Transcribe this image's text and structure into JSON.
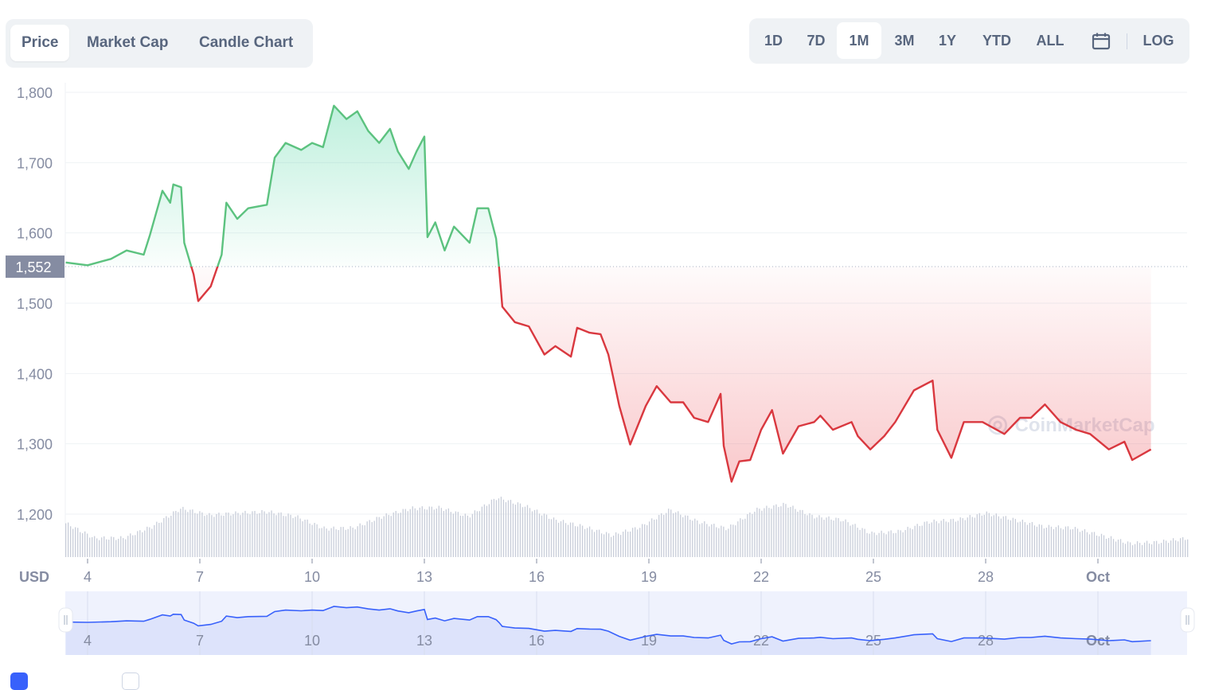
{
  "chart_tabs": [
    {
      "label": "Price",
      "active": true
    },
    {
      "label": "Market Cap",
      "active": false
    },
    {
      "label": "Candle Chart",
      "active": false
    }
  ],
  "time_ranges": [
    {
      "label": "1D",
      "active": false
    },
    {
      "label": "7D",
      "active": false
    },
    {
      "label": "1M",
      "active": true
    },
    {
      "label": "3M",
      "active": false
    },
    {
      "label": "1Y",
      "active": false
    },
    {
      "label": "YTD",
      "active": false
    },
    {
      "label": "ALL",
      "active": false
    }
  ],
  "calendar_icon": "calendar-icon",
  "log_label": "LOG",
  "currency_label": "USD",
  "watermark": "CoinMarketCap",
  "colors": {
    "up": "#16c784",
    "up_line": "#5cc27f",
    "down": "#ea3943",
    "down_line": "#d9383f",
    "navigator": "#3861fb"
  },
  "chart_data": {
    "type": "area",
    "y_ticks": [
      "1,200",
      "1,300",
      "1,400",
      "1,500",
      "1,600",
      "1,700",
      "1,800"
    ],
    "ylim": [
      1175,
      1825
    ],
    "x_ticks": [
      {
        "label": "4",
        "date": "09-04T00:00"
      },
      {
        "label": "7",
        "date": "09-07T00:00"
      },
      {
        "label": "10",
        "date": "09-10T00:00"
      },
      {
        "label": "13",
        "date": "09-13T00:00"
      },
      {
        "label": "16",
        "date": "09-16T00:00"
      },
      {
        "label": "19",
        "date": "09-19T00:00"
      },
      {
        "label": "22",
        "date": "09-22T00:00"
      },
      {
        "label": "25",
        "date": "09-25T00:00"
      },
      {
        "label": "28",
        "date": "09-28T00:00"
      },
      {
        "label": "Oct",
        "date": "10-01T00:00",
        "bold": true
      }
    ],
    "baseline": {
      "value": 1552,
      "label": "1,552"
    },
    "grid": true,
    "series": [
      {
        "points": [
          [
            "09-03T10:00",
            1558
          ],
          [
            "09-04T00:00",
            1554
          ],
          [
            "09-04T15:00",
            1563
          ],
          [
            "09-05T01:00",
            1575
          ],
          [
            "09-05T12:00",
            1569
          ],
          [
            "09-05T16:00",
            1597
          ],
          [
            "09-06T00:00",
            1660
          ],
          [
            "09-06T05:00",
            1643
          ],
          [
            "09-06T07:00",
            1669
          ],
          [
            "09-06T12:00",
            1665
          ],
          [
            "09-06T14:00",
            1586
          ],
          [
            "09-06T20:00",
            1541
          ],
          [
            "09-06T23:00",
            1503
          ],
          [
            "09-07T07:00",
            1524
          ],
          [
            "09-07T14:00",
            1569
          ],
          [
            "09-07T17:00",
            1643
          ],
          [
            "09-08T00:00",
            1620
          ],
          [
            "09-08T07:00",
            1635
          ],
          [
            "09-08T19:00",
            1640
          ],
          [
            "09-09T00:00",
            1707
          ],
          [
            "09-09T07:00",
            1728
          ],
          [
            "09-09T17:00",
            1718
          ],
          [
            "09-10T00:00",
            1728
          ],
          [
            "09-10T07:00",
            1722
          ],
          [
            "09-10T14:00",
            1781
          ],
          [
            "09-10T22:00",
            1762
          ],
          [
            "09-11T05:00",
            1773
          ],
          [
            "09-11T12:00",
            1745
          ],
          [
            "09-11T19:00",
            1728
          ],
          [
            "09-12T02:00",
            1748
          ],
          [
            "09-12T07:00",
            1716
          ],
          [
            "09-12T14:00",
            1691
          ],
          [
            "09-12T19:00",
            1716
          ],
          [
            "09-13T00:00",
            1737
          ],
          [
            "09-13T02:00",
            1594
          ],
          [
            "09-13T07:00",
            1615
          ],
          [
            "09-13T13:00",
            1575
          ],
          [
            "09-13T19:00",
            1609
          ],
          [
            "09-14T05:00",
            1586
          ],
          [
            "09-14T10:00",
            1635
          ],
          [
            "09-14T17:00",
            1635
          ],
          [
            "09-14T22:00",
            1592
          ],
          [
            "09-15T00:00",
            1549
          ],
          [
            "09-15T02:00",
            1495
          ],
          [
            "09-15T10:00",
            1473
          ],
          [
            "09-15T19:00",
            1467
          ],
          [
            "09-16T05:00",
            1427
          ],
          [
            "09-16T12:00",
            1439
          ],
          [
            "09-16T22:00",
            1424
          ],
          [
            "09-17T02:00",
            1465
          ],
          [
            "09-17T10:00",
            1458
          ],
          [
            "09-17T17:00",
            1456
          ],
          [
            "09-17T22:00",
            1427
          ],
          [
            "09-18T05:00",
            1354
          ],
          [
            "09-18T12:00",
            1299
          ],
          [
            "09-18T22:00",
            1354
          ],
          [
            "09-19T05:00",
            1382
          ],
          [
            "09-19T14:00",
            1359
          ],
          [
            "09-19T22:00",
            1359
          ],
          [
            "09-20T05:00",
            1337
          ],
          [
            "09-20T14:00",
            1331
          ],
          [
            "09-20T22:00",
            1371
          ],
          [
            "09-21T00:00",
            1297
          ],
          [
            "09-21T05:00",
            1246
          ],
          [
            "09-21T10:00",
            1275
          ],
          [
            "09-21T17:00",
            1277
          ],
          [
            "09-22T00:00",
            1320
          ],
          [
            "09-22T07:00",
            1348
          ],
          [
            "09-22T14:00",
            1286
          ],
          [
            "09-23T00:00",
            1325
          ],
          [
            "09-23T10:00",
            1331
          ],
          [
            "09-23T14:00",
            1340
          ],
          [
            "09-23T22:00",
            1320
          ],
          [
            "09-24T10:00",
            1331
          ],
          [
            "09-24T14:00",
            1311
          ],
          [
            "09-24T22:00",
            1292
          ],
          [
            "09-25T07:00",
            1311
          ],
          [
            "09-25T14:00",
            1331
          ],
          [
            "09-26T02:00",
            1376
          ],
          [
            "09-26T14:00",
            1390
          ],
          [
            "09-26T17:00",
            1320
          ],
          [
            "09-27T02:00",
            1280
          ],
          [
            "09-27T10:00",
            1331
          ],
          [
            "09-27T22:00",
            1331
          ],
          [
            "09-28T12:00",
            1314
          ],
          [
            "09-28T22:00",
            1337
          ],
          [
            "09-29T05:00",
            1337
          ],
          [
            "09-29T14:00",
            1356
          ],
          [
            "09-30T00:00",
            1331
          ],
          [
            "09-30T10:00",
            1320
          ],
          [
            "09-30T19:00",
            1314
          ],
          [
            "10-01T07:00",
            1292
          ],
          [
            "10-01T17:00",
            1303
          ],
          [
            "10-01T22:00",
            1277
          ],
          [
            "10-02T10:00",
            1292
          ]
        ]
      }
    ],
    "volume_relative": [
      0.5,
      0.28,
      0.28,
      0.45,
      0.72,
      0.62,
      0.65,
      0.67,
      0.6,
      0.42,
      0.43,
      0.6,
      0.72,
      0.73,
      0.6,
      0.88,
      0.75,
      0.55,
      0.45,
      0.32,
      0.45,
      0.7,
      0.52,
      0.42,
      0.7,
      0.78,
      0.6,
      0.55,
      0.35,
      0.38,
      0.52,
      0.55,
      0.65,
      0.55,
      0.45,
      0.43,
      0.32,
      0.2,
      0.22,
      0.28
    ]
  },
  "navigator": {
    "x_ticks": [
      "4",
      "7",
      "10",
      "13",
      "16",
      "19",
      "22",
      "25",
      "28",
      "Oct"
    ]
  }
}
